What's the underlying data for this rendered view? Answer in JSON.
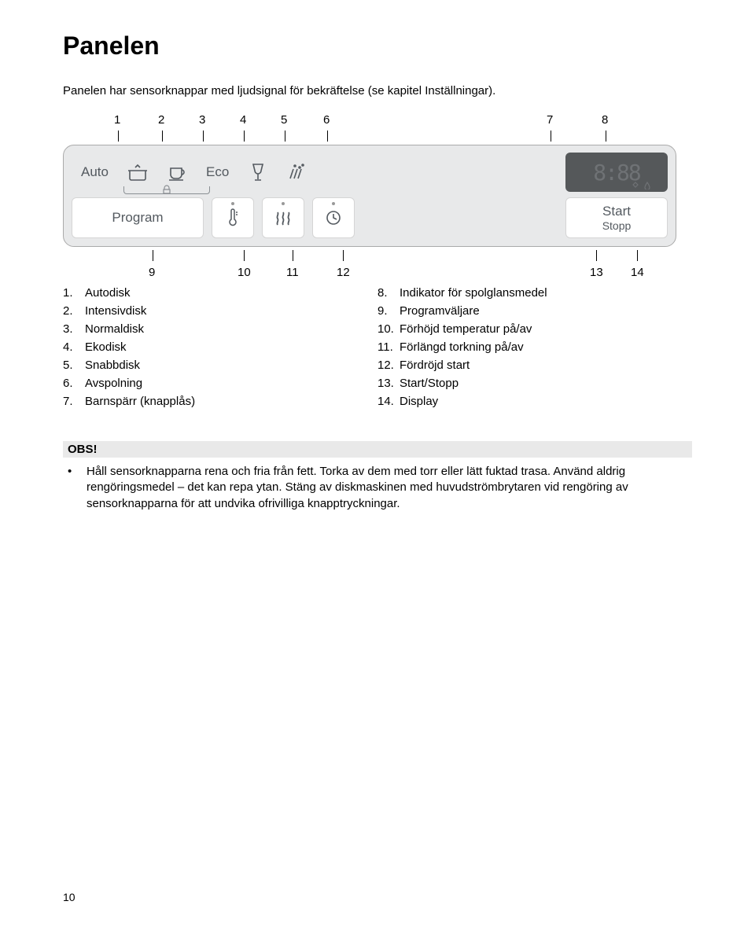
{
  "title": "Panelen",
  "intro": "Panelen har sensorknappar med ljudsignal för bekräftelse (se kapitel Inställningar).",
  "topNumbers": [
    "1",
    "2",
    "3",
    "4",
    "5",
    "6",
    "7",
    "8"
  ],
  "lowerNumbers": [
    "9",
    "10",
    "11",
    "12",
    "13",
    "14"
  ],
  "panel": {
    "autoLabel": "Auto",
    "ecoLabel": "Eco",
    "programLabel": "Program",
    "startLabel": "Start",
    "stoppLabel": "Stopp",
    "displayDigits": "8:88",
    "iconColor": "#53595f",
    "displayBg": "#55585a",
    "displayDigitColor": "#6f7275",
    "panelBg": "#e8e9ea",
    "btnBg": "#ffffff"
  },
  "leftList": [
    {
      "n": "1.",
      "t": "Autodisk"
    },
    {
      "n": "2.",
      "t": "Intensivdisk"
    },
    {
      "n": "3.",
      "t": "Normaldisk"
    },
    {
      "n": "4.",
      "t": "Ekodisk"
    },
    {
      "n": "5.",
      "t": "Snabbdisk"
    },
    {
      "n": "6.",
      "t": "Avspolning"
    },
    {
      "n": "7.",
      "t": "Barnspärr (knapplås)"
    }
  ],
  "rightList": [
    {
      "n": "8.",
      "t": "Indikator för spolglansmedel"
    },
    {
      "n": "9.",
      "t": "Programväljare"
    },
    {
      "n": "10.",
      "t": "Förhöjd temperatur på/av"
    },
    {
      "n": "11.",
      "t": "Förlängd torkning på/av"
    },
    {
      "n": "12.",
      "t": "Fördröjd start"
    },
    {
      "n": "13.",
      "t": "Start/Stopp"
    },
    {
      "n": "14.",
      "t": "Display"
    }
  ],
  "obs": {
    "header": "OBS!",
    "bullet": "•",
    "text": "Håll sensorknapparna rena och fria från fett. Torka av dem med torr eller lätt fuktad trasa. Använd aldrig rengöringsmedel – det kan repa ytan. Stäng av diskmaskinen med huvudströmbrytaren vid rengöring av sensorknapparna för att undvika ofrivilliga knapptryckningar."
  },
  "pageNumber": "10",
  "topTickX": [
    40,
    96,
    148,
    200,
    252,
    306,
    590,
    660
  ],
  "lowerTickX": [
    84,
    200,
    262,
    326,
    648,
    700
  ],
  "topNumX": [
    35,
    91,
    143,
    195,
    247,
    301,
    585,
    655
  ],
  "lowerNumX": [
    79,
    192,
    254,
    318,
    640,
    692
  ]
}
